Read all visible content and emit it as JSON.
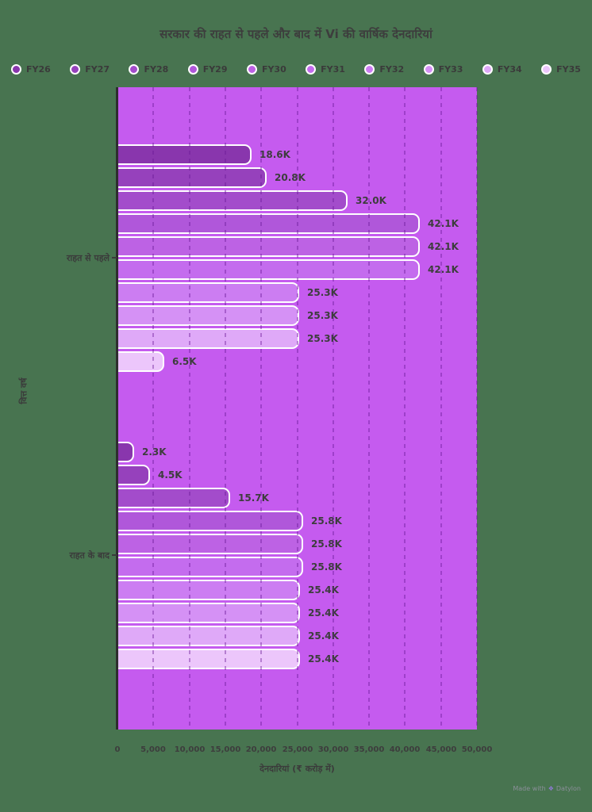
{
  "colors": {
    "page_background": "#487450",
    "plot_background": "#c55bef",
    "gridline": "rgba(105,25,150,0.42)",
    "axis_line": "#2e2e2e",
    "text": "#3d3d3d",
    "bar_border": "#ffffff",
    "footer_text": "#8b8f99"
  },
  "legend": [
    {
      "label": "FY26",
      "color": "#8936ad"
    },
    {
      "label": "FY27",
      "color": "#9641bc"
    },
    {
      "label": "FY28",
      "color": "#a34ccb"
    },
    {
      "label": "FY29",
      "color": "#b057da"
    },
    {
      "label": "FY30",
      "color": "#bd62e4"
    },
    {
      "label": "FY31",
      "color": "#c46cee"
    },
    {
      "label": "FY32",
      "color": "#cc7df2"
    },
    {
      "label": "FY33",
      "color": "#d591f5"
    },
    {
      "label": "FY34",
      "color": "#dfa9f8"
    },
    {
      "label": "FY35",
      "color": "#ecc6fb"
    }
  ],
  "chart_data": {
    "type": "bar",
    "orientation": "horizontal",
    "title": "सरकार की राहत से पहले और बाद में Vi की वार्षिक देनदारियां",
    "xlabel": "देनदारियां (₹ करोड़ में)",
    "ylabel": "वित्त वर्ष",
    "xlim": [
      0,
      50000
    ],
    "legend_position": "top",
    "grid": "vertical-dashed",
    "series_names": [
      "FY26",
      "FY27",
      "FY28",
      "FY29",
      "FY30",
      "FY31",
      "FY32",
      "FY33",
      "FY34",
      "FY35"
    ],
    "xticks": [
      {
        "value": 0,
        "label": "0"
      },
      {
        "value": 5000,
        "label": "5,000"
      },
      {
        "value": 10000,
        "label": "10,000"
      },
      {
        "value": 15000,
        "label": "15,000"
      },
      {
        "value": 20000,
        "label": "20,000"
      },
      {
        "value": 25000,
        "label": "25,000"
      },
      {
        "value": 30000,
        "label": "30,000"
      },
      {
        "value": 35000,
        "label": "35,000"
      },
      {
        "value": 40000,
        "label": "40,000"
      },
      {
        "value": 45000,
        "label": "45,000"
      },
      {
        "value": 50000,
        "label": "50,000"
      }
    ],
    "gridline_values": [
      5000,
      10000,
      15000,
      20000,
      25000,
      30000,
      35000,
      40000,
      45000,
      50000
    ],
    "groups": [
      {
        "label": "राहत से पहले",
        "values": [
          18600,
          20800,
          32000,
          42100,
          42100,
          42100,
          25300,
          25300,
          25300,
          6500
        ],
        "labels": [
          "18.6K",
          "20.8K",
          "32.0K",
          "42.1K",
          "42.1K",
          "42.1K",
          "25.3K",
          "25.3K",
          "25.3K",
          "6.5K"
        ]
      },
      {
        "label": "राहत के बाद",
        "values": [
          2300,
          4500,
          15700,
          25800,
          25800,
          25800,
          25400,
          25400,
          25400,
          25400
        ],
        "labels": [
          "2.3K",
          "4.5K",
          "15.7K",
          "25.8K",
          "25.8K",
          "25.8K",
          "25.4K",
          "25.4K",
          "25.4K",
          "25.4K"
        ]
      }
    ]
  },
  "footer": {
    "text": "Made with",
    "brand": "Datylon"
  }
}
